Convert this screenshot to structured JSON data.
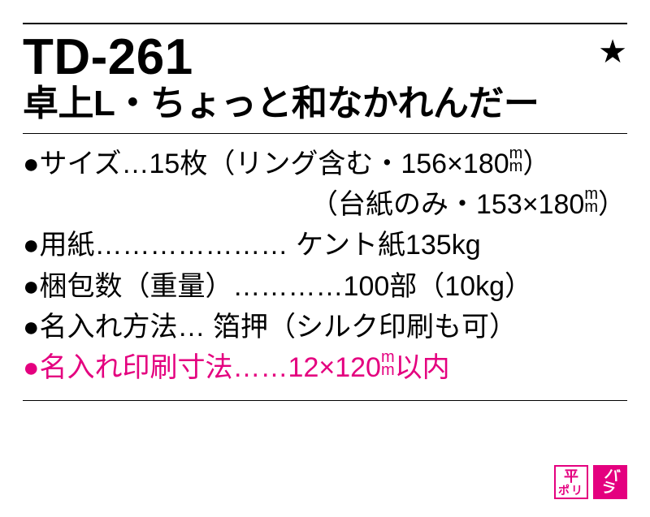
{
  "colors": {
    "text": "#000000",
    "accent": "#e4007f",
    "background": "#ffffff"
  },
  "header": {
    "code": "TD-261",
    "star": "★",
    "name": "卓上L・ちょっと和なかれんだー"
  },
  "specs": {
    "size_label": "●サイズ…15枚（リング含む・156×180",
    "size_tail": "）",
    "size_sub_lead": "（台紙のみ・153×180",
    "size_sub_tail": "）",
    "paper": "●用紙………………… ケント紙135kg",
    "packing": "●梱包数（重量）…………100部（10kg）",
    "printing": "●名入れ方法… 箔押（シルク印刷も可）",
    "dims_lead": "●名入れ印刷寸法……12×120",
    "dims_tail": "以内"
  },
  "badges": {
    "outline_top": "平",
    "outline_bottom": "ポリ",
    "solid_top": "バ",
    "solid_bottom": "ラ"
  }
}
